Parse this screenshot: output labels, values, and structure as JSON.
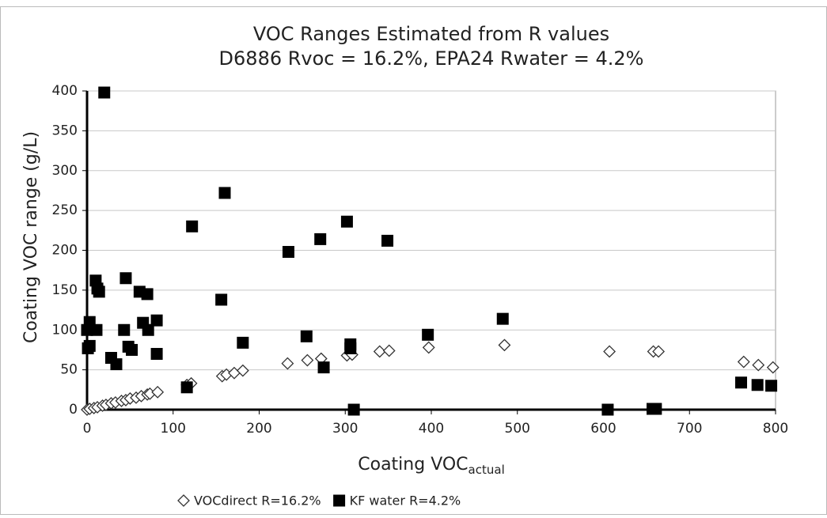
{
  "chart_data": {
    "type": "scatter",
    "title": [
      "VOC Ranges Estimated from R values",
      "D6886 Rvoc = 16.2%, EPA24 Rwater = 4.2%"
    ],
    "xlabel": "Coating VOC",
    "xlabel_subscript": "actual",
    "ylabel": "Coating VOC range (g/L)",
    "xlim": [
      0,
      800
    ],
    "xticks": [
      0,
      100,
      200,
      300,
      400,
      500,
      600,
      700,
      800
    ],
    "ylim": [
      0,
      400
    ],
    "yticks": [
      0,
      50,
      100,
      150,
      200,
      250,
      300,
      350,
      400
    ],
    "grid": true,
    "legend": "bottom",
    "series": [
      {
        "name": "VOCdirect R=16.2%",
        "marker": "diamond",
        "color": "#ffffff",
        "x": [
          0,
          3,
          8,
          12,
          18,
          22,
          28,
          33,
          40,
          45,
          50,
          57,
          63,
          70,
          73,
          82,
          116,
          121,
          157,
          162,
          171,
          181,
          233,
          256,
          272,
          302,
          308,
          340,
          351,
          397,
          485,
          607,
          658,
          664,
          763,
          780,
          797
        ],
        "values": [
          0,
          1,
          2,
          3,
          5,
          6,
          8,
          9,
          11,
          12,
          14,
          15,
          17,
          19,
          20,
          22,
          31,
          33,
          42,
          44,
          46,
          49,
          58,
          62,
          64,
          68,
          69,
          73,
          74,
          78,
          81,
          73,
          73,
          73,
          60,
          56,
          53
        ]
      },
      {
        "name": "KF water R=4.2%",
        "marker": "square",
        "color": "#000000",
        "x": [
          20,
          10,
          12,
          14,
          0,
          3,
          11,
          1,
          3,
          45,
          61,
          70,
          43,
          65,
          71,
          81,
          48,
          52,
          28,
          34,
          81,
          122,
          160,
          156,
          116,
          181,
          234,
          271,
          302,
          349,
          255,
          275,
          306,
          306,
          310,
          396,
          483,
          605,
          657,
          661,
          760,
          779,
          795
        ],
        "values": [
          398,
          162,
          152,
          148,
          100,
          110,
          100,
          77,
          80,
          165,
          148,
          145,
          100,
          109,
          100,
          112,
          79,
          75,
          65,
          57,
          70,
          230,
          272,
          138,
          28,
          84,
          198,
          214,
          236,
          212,
          92,
          53,
          82,
          77,
          0,
          94,
          114,
          0,
          1,
          1,
          34,
          31,
          30
        ]
      }
    ]
  }
}
